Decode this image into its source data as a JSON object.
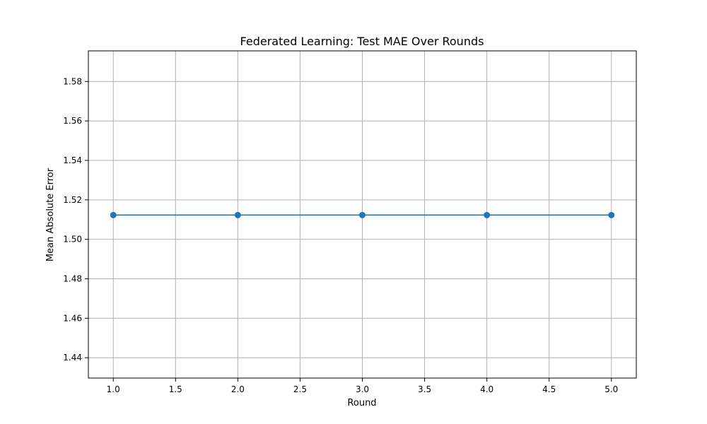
{
  "chart_data": {
    "type": "line",
    "title": "Federated Learning: Test MAE Over Rounds",
    "xlabel": "Round",
    "ylabel": "Mean Absolute Error",
    "x": [
      1,
      2,
      3,
      4,
      5
    ],
    "series": [
      {
        "values": [
          1.5123,
          1.5123,
          1.5123,
          1.5123,
          1.5123
        ]
      }
    ],
    "xlim": [
      0.8,
      5.2
    ],
    "ylim": [
      1.4297,
      1.5955
    ],
    "xticks": [
      "1.0",
      "1.5",
      "2.0",
      "2.5",
      "3.0",
      "3.5",
      "4.0",
      "4.5",
      "5.0"
    ],
    "yticks": [
      "1.44",
      "1.46",
      "1.48",
      "1.50",
      "1.52",
      "1.54",
      "1.56",
      "1.58"
    ],
    "grid": true,
    "line_color": "#1f77b4",
    "marker": "circle"
  }
}
